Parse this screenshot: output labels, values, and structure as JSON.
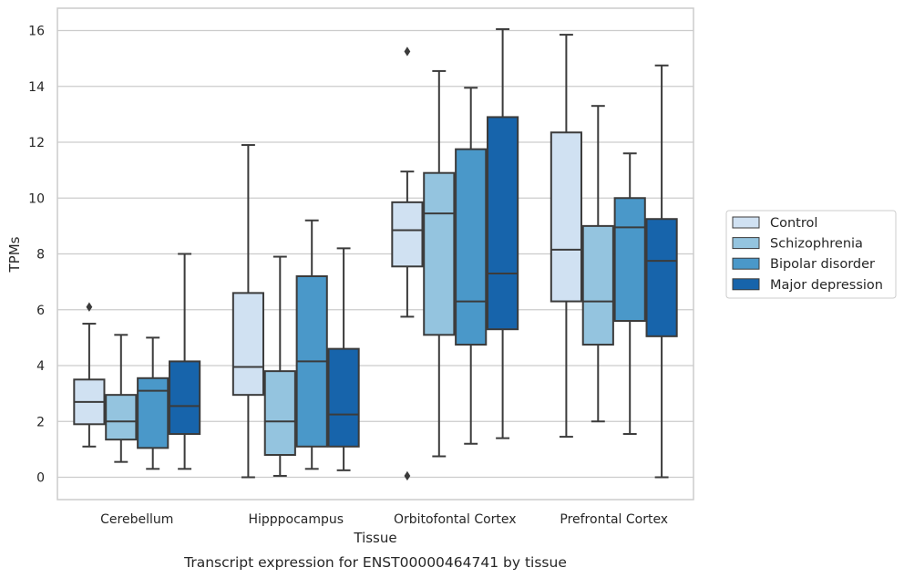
{
  "chart_data": {
    "type": "box",
    "title": "",
    "caption": "Transcript expression for ENST00000464741 by tissue",
    "xlabel": "Tissue",
    "ylabel": "TPMs",
    "ylim": [
      -0.8,
      16.8
    ],
    "yticks": [
      0,
      2,
      4,
      6,
      8,
      10,
      12,
      14,
      16
    ],
    "grid": "horizontal",
    "legend_position": "right",
    "categories": [
      "Cerebellum",
      "Hipppocampus",
      "Orbitofontal Cortex",
      "Prefrontal Cortex"
    ],
    "series": [
      {
        "name": "Control",
        "color": "#d0e1f2",
        "boxes": [
          {
            "whisker_low": 1.1,
            "q1": 1.9,
            "median": 2.7,
            "q3": 3.5,
            "whisker_high": 5.5,
            "outliers": [
              6.1
            ]
          },
          {
            "whisker_low": 0.0,
            "q1": 2.95,
            "median": 3.95,
            "q3": 6.6,
            "whisker_high": 11.9,
            "outliers": []
          },
          {
            "whisker_low": 5.75,
            "q1": 7.55,
            "median": 8.85,
            "q3": 9.85,
            "whisker_high": 10.95,
            "outliers": [
              15.25,
              0.05
            ]
          },
          {
            "whisker_low": 1.45,
            "q1": 6.3,
            "median": 8.15,
            "q3": 12.35,
            "whisker_high": 15.85,
            "outliers": []
          }
        ]
      },
      {
        "name": "Schizophrenia",
        "color": "#94c4df",
        "boxes": [
          {
            "whisker_low": 0.55,
            "q1": 1.35,
            "median": 2.0,
            "q3": 2.95,
            "whisker_high": 5.1,
            "outliers": []
          },
          {
            "whisker_low": 0.05,
            "q1": 0.8,
            "median": 2.0,
            "q3": 3.8,
            "whisker_high": 7.9,
            "outliers": []
          },
          {
            "whisker_low": 0.75,
            "q1": 5.1,
            "median": 9.45,
            "q3": 10.9,
            "whisker_high": 14.55,
            "outliers": []
          },
          {
            "whisker_low": 2.0,
            "q1": 4.75,
            "median": 6.3,
            "q3": 9.0,
            "whisker_high": 13.3,
            "outliers": []
          }
        ]
      },
      {
        "name": "Bipolar disorder",
        "color": "#4a98c9",
        "boxes": [
          {
            "whisker_low": 0.3,
            "q1": 1.05,
            "median": 3.1,
            "q3": 3.55,
            "whisker_high": 5.0,
            "outliers": []
          },
          {
            "whisker_low": 0.3,
            "q1": 1.1,
            "median": 4.15,
            "q3": 7.2,
            "whisker_high": 9.2,
            "outliers": []
          },
          {
            "whisker_low": 1.2,
            "q1": 4.75,
            "median": 6.3,
            "q3": 11.75,
            "whisker_high": 13.95,
            "outliers": []
          },
          {
            "whisker_low": 1.55,
            "q1": 5.6,
            "median": 8.95,
            "q3": 10.0,
            "whisker_high": 11.6,
            "outliers": []
          }
        ]
      },
      {
        "name": "Major depression",
        "color": "#1764ab",
        "boxes": [
          {
            "whisker_low": 0.3,
            "q1": 1.55,
            "median": 2.55,
            "q3": 4.15,
            "whisker_high": 8.0,
            "outliers": []
          },
          {
            "whisker_low": 0.25,
            "q1": 1.1,
            "median": 2.25,
            "q3": 4.6,
            "whisker_high": 8.2,
            "outliers": []
          },
          {
            "whisker_low": 1.4,
            "q1": 5.3,
            "median": 7.3,
            "q3": 12.9,
            "whisker_high": 16.05,
            "outliers": []
          },
          {
            "whisker_low": 0.0,
            "q1": 5.05,
            "median": 7.75,
            "q3": 9.25,
            "whisker_high": 14.75,
            "outliers": []
          }
        ]
      }
    ]
  }
}
